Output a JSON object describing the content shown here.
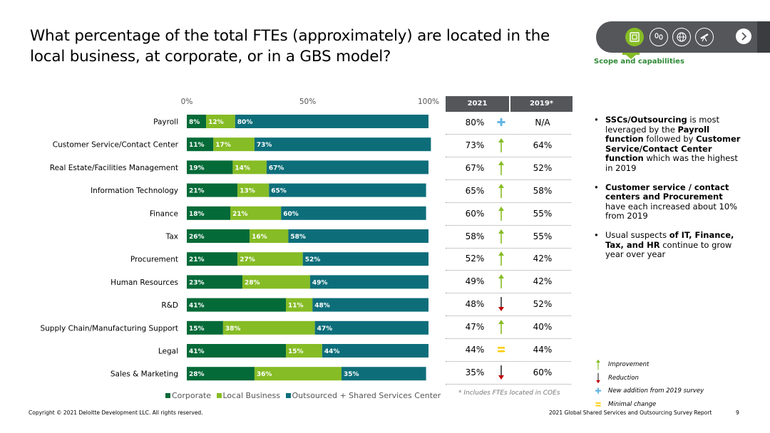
{
  "title": "What percentage of the total FTEs (approximately) are located in the local business, at corporate, or in a GBS model?",
  "nav": {
    "label": "Scope and capabilities",
    "icons": [
      "scope-icon",
      "footprints-icon",
      "globe-icon",
      "telescope-icon"
    ],
    "next_icon": "chevron-right-icon"
  },
  "colors": {
    "corporate": "#046a38",
    "local": "#86bc25",
    "outsourced": "#0d6e7a",
    "header": "#54565a",
    "green_text": "#2f8a36",
    "plus": "#62b5e5",
    "minimal": "#ffcd00",
    "reduction": "#c00000"
  },
  "chart_data": {
    "type": "bar",
    "orientation": "horizontal",
    "stacked": true,
    "x_ticks": [
      "0%",
      "50%",
      "100%"
    ],
    "xlim": [
      0,
      100
    ],
    "categories": [
      "Payroll",
      "Customer Service/Contact Center",
      "Real Estate/Facilities Management",
      "Information Technology",
      "Finance",
      "Tax",
      "Procurement",
      "Human Resources",
      "R&D",
      "Supply Chain/Manufacturing Support",
      "Legal",
      "Sales & Marketing"
    ],
    "series": [
      {
        "name": "Corporate",
        "values": [
          8,
          11,
          19,
          21,
          18,
          26,
          21,
          23,
          41,
          15,
          41,
          28
        ]
      },
      {
        "name": "Local Business",
        "values": [
          12,
          17,
          14,
          13,
          21,
          16,
          27,
          28,
          11,
          38,
          15,
          36
        ]
      },
      {
        "name": "Outsourced + Shared Services Center",
        "values": [
          80,
          73,
          67,
          65,
          60,
          58,
          52,
          49,
          48,
          47,
          44,
          35
        ]
      }
    ],
    "legend_position": "bottom"
  },
  "table": {
    "headers": [
      "2021",
      "2019*"
    ],
    "rows": [
      {
        "y2021": "80%",
        "y2019": "N/A",
        "change": "new"
      },
      {
        "y2021": "73%",
        "y2019": "64%",
        "change": "up"
      },
      {
        "y2021": "67%",
        "y2019": "52%",
        "change": "up"
      },
      {
        "y2021": "65%",
        "y2019": "58%",
        "change": "up"
      },
      {
        "y2021": "60%",
        "y2019": "55%",
        "change": "up"
      },
      {
        "y2021": "58%",
        "y2019": "55%",
        "change": "up"
      },
      {
        "y2021": "52%",
        "y2019": "42%",
        "change": "up"
      },
      {
        "y2021": "49%",
        "y2019": "42%",
        "change": "up"
      },
      {
        "y2021": "48%",
        "y2019": "52%",
        "change": "down"
      },
      {
        "y2021": "47%",
        "y2019": "40%",
        "change": "up"
      },
      {
        "y2021": "44%",
        "y2019": "44%",
        "change": "same"
      },
      {
        "y2021": "35%",
        "y2019": "60%",
        "change": "down"
      }
    ],
    "footnote": "* Includes FTEs located in COEs"
  },
  "bullets": [
    [
      {
        "t": "SSCs/Outsourcing",
        "b": true
      },
      {
        "t": " is most leveraged by the ",
        "b": false
      },
      {
        "t": "Payroll function",
        "b": true
      },
      {
        "t": " followed by ",
        "b": false
      },
      {
        "t": "Customer Service/Contact Center function",
        "b": true
      },
      {
        "t": " which was the highest in 2019",
        "b": false
      }
    ],
    [
      {
        "t": "Customer service / contact centers and Procurement",
        "b": true
      },
      {
        "t": " have each increased about 10% from 2019",
        "b": false
      }
    ],
    [
      {
        "t": "Usual suspects ",
        "b": false
      },
      {
        "t": "of IT, Finance, Tax, and HR",
        "b": true
      },
      {
        "t": " continue to grow year over year",
        "b": false
      }
    ]
  ],
  "key": [
    {
      "icon": "up",
      "label": "Improvement"
    },
    {
      "icon": "down",
      "label": "Reduction"
    },
    {
      "icon": "new",
      "label": "New addition from 2019 survey"
    },
    {
      "icon": "same",
      "label": "Minimal change"
    }
  ],
  "footer": {
    "copyright": "Copyright © 2021 Deloitte Development LLC. All rights reserved.",
    "report": "2021 Global Shared Services and Outsourcing Survey Report",
    "page": "9"
  }
}
